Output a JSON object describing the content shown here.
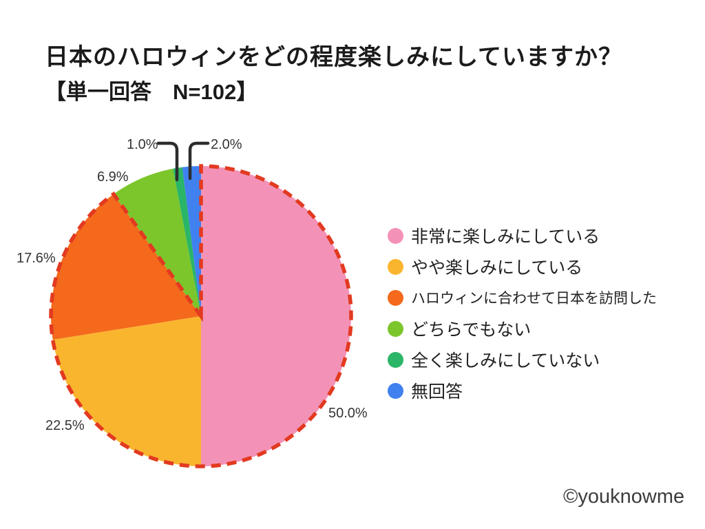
{
  "header": {
    "title": "日本のハロウィンをどの程度楽しみにしていますか？",
    "subtitle": "【単一回答　N=102】"
  },
  "chart_data": {
    "type": "pie",
    "title": "日本のハロウィンをどの程度楽しみにしていますか？",
    "subtitle": "【単一回答　N=102】",
    "sample_size": 102,
    "unit": "%",
    "direction": "clockwise",
    "start_angle_deg_from_top": 0,
    "legend_position": "right",
    "slices": [
      {
        "label": "非常に楽しみにしている",
        "value": 50.0,
        "pct_label": "50.0%",
        "color": "#F392B6"
      },
      {
        "label": "やや楽しみにしている",
        "value": 22.5,
        "pct_label": "22.5%",
        "color": "#FAB52F"
      },
      {
        "label": "ハロウィンに合わせて日本を訪問した",
        "value": 17.6,
        "pct_label": "17.6%",
        "color": "#F4691C"
      },
      {
        "label": "どちらでもない",
        "value": 6.9,
        "pct_label": "6.9%",
        "color": "#7CC62C"
      },
      {
        "label": "全く楽しみにしていない",
        "value": 1.0,
        "pct_label": "1.0%",
        "color": "#2AB567"
      },
      {
        "label": "無回答",
        "value": 2.0,
        "pct_label": "2.0%",
        "color": "#4081EF"
      }
    ],
    "highlight_outline": {
      "color": "#E23A20",
      "style": "dashed",
      "covers_slices": [
        0,
        1,
        2
      ]
    },
    "callout_line_color": "#2d2d2d"
  },
  "footer": {
    "copyright": "©youknowme"
  }
}
